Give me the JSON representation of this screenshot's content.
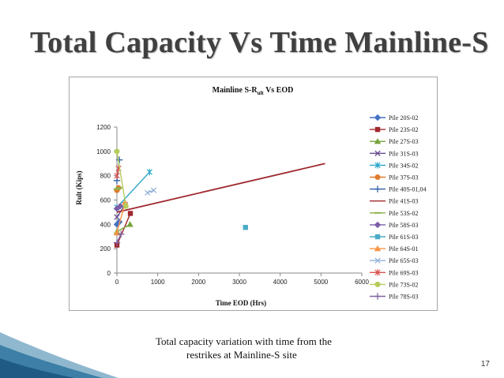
{
  "slide": {
    "title": "Total Capacity Vs Time Mainline-S",
    "caption_line1": "Total capacity variation with time from the",
    "caption_line2": "restrikes at Mainline-S site",
    "page_number": "17"
  },
  "chart_data": {
    "type": "scatter",
    "title": "Mainline S-R",
    "title_subscript": "ult",
    "title_suffix": " Vs EOD",
    "xlabel": "Time EOD (Hrs)",
    "ylabel": "Rult (Kips)",
    "xlim": [
      0,
      6000
    ],
    "ylim": [
      0,
      1200
    ],
    "xticks": [
      0,
      1000,
      2000,
      3000,
      4000,
      5000,
      6000
    ],
    "yticks": [
      0,
      200,
      400,
      600,
      800,
      1000,
      1200
    ],
    "grid": false,
    "legend_position": "right",
    "series": [
      {
        "name": "Pile  20S-02",
        "color": "#4472c4",
        "marker": "diamond",
        "line": true,
        "points": [
          [
            0,
            400
          ],
          [
            60,
            420
          ]
        ]
      },
      {
        "name": "Pile  23S-02",
        "color": "#a0282e",
        "marker": "square",
        "line": true,
        "points": [
          [
            0,
            230
          ],
          [
            330,
            490
          ]
        ]
      },
      {
        "name": "Pile 27S-03",
        "color": "#76a33c",
        "marker": "triangle",
        "line": true,
        "points": [
          [
            0,
            340
          ],
          [
            320,
            400
          ]
        ]
      },
      {
        "name": "Pile 31S-03",
        "color": "#6a4c93",
        "marker": "x",
        "line": true,
        "points": [
          [
            0,
            460
          ],
          [
            200,
            560
          ]
        ]
      },
      {
        "name": "Pile 34S-02",
        "color": "#2aa7c9",
        "marker": "star",
        "line": true,
        "points": [
          [
            0,
            540
          ],
          [
            800,
            830
          ]
        ]
      },
      {
        "name": "Pile 37S-03",
        "color": "#e07a2c",
        "marker": "circle",
        "line": true,
        "points": [
          [
            0,
            680
          ],
          [
            40,
            700
          ]
        ]
      },
      {
        "name": "Pile 40S-01,04",
        "color": "#2f5fa8",
        "marker": "plus",
        "line": true,
        "points": [
          [
            0,
            760
          ],
          [
            60,
            930
          ]
        ]
      },
      {
        "name": "Pile 41S-03",
        "color": "#a0282e",
        "marker": "none",
        "line": true,
        "points": [
          [
            0,
            500
          ],
          [
            5100,
            900
          ]
        ]
      },
      {
        "name": "Pile 53S-02",
        "color": "#8db04a",
        "marker": "dash",
        "line": true,
        "points": [
          [
            0,
            690
          ],
          [
            50,
            700
          ]
        ]
      },
      {
        "name": "Pile 58S-03",
        "color": "#7b5ea7",
        "marker": "diamond",
        "line": true,
        "points": [
          [
            0,
            530
          ],
          [
            80,
            550
          ]
        ]
      },
      {
        "name": "Pile 61S-03",
        "color": "#4bacc6",
        "marker": "square",
        "line": true,
        "points": [
          [
            3150,
            375
          ]
        ]
      },
      {
        "name": "Pile 64S-01",
        "color": "#f79646",
        "marker": "triangle",
        "line": true,
        "points": [
          [
            0,
            330
          ],
          [
            200,
            580
          ]
        ]
      },
      {
        "name": "Pile 65S-03",
        "color": "#95b3d7",
        "marker": "x",
        "line": true,
        "points": [
          [
            750,
            660
          ],
          [
            900,
            680
          ]
        ]
      },
      {
        "name": "Pile 69S-03",
        "color": "#d9534f",
        "marker": "star",
        "line": true,
        "points": [
          [
            0,
            800
          ],
          [
            40,
            860
          ]
        ]
      },
      {
        "name": "Pile 73S-02",
        "color": "#b5cc5c",
        "marker": "circle",
        "line": true,
        "points": [
          [
            0,
            1000
          ],
          [
            220,
            550
          ]
        ]
      },
      {
        "name": "Pile 78S-03",
        "color": "#8064a2",
        "marker": "plus",
        "line": true,
        "points": [
          [
            0,
            250
          ],
          [
            100,
            320
          ]
        ]
      }
    ]
  }
}
